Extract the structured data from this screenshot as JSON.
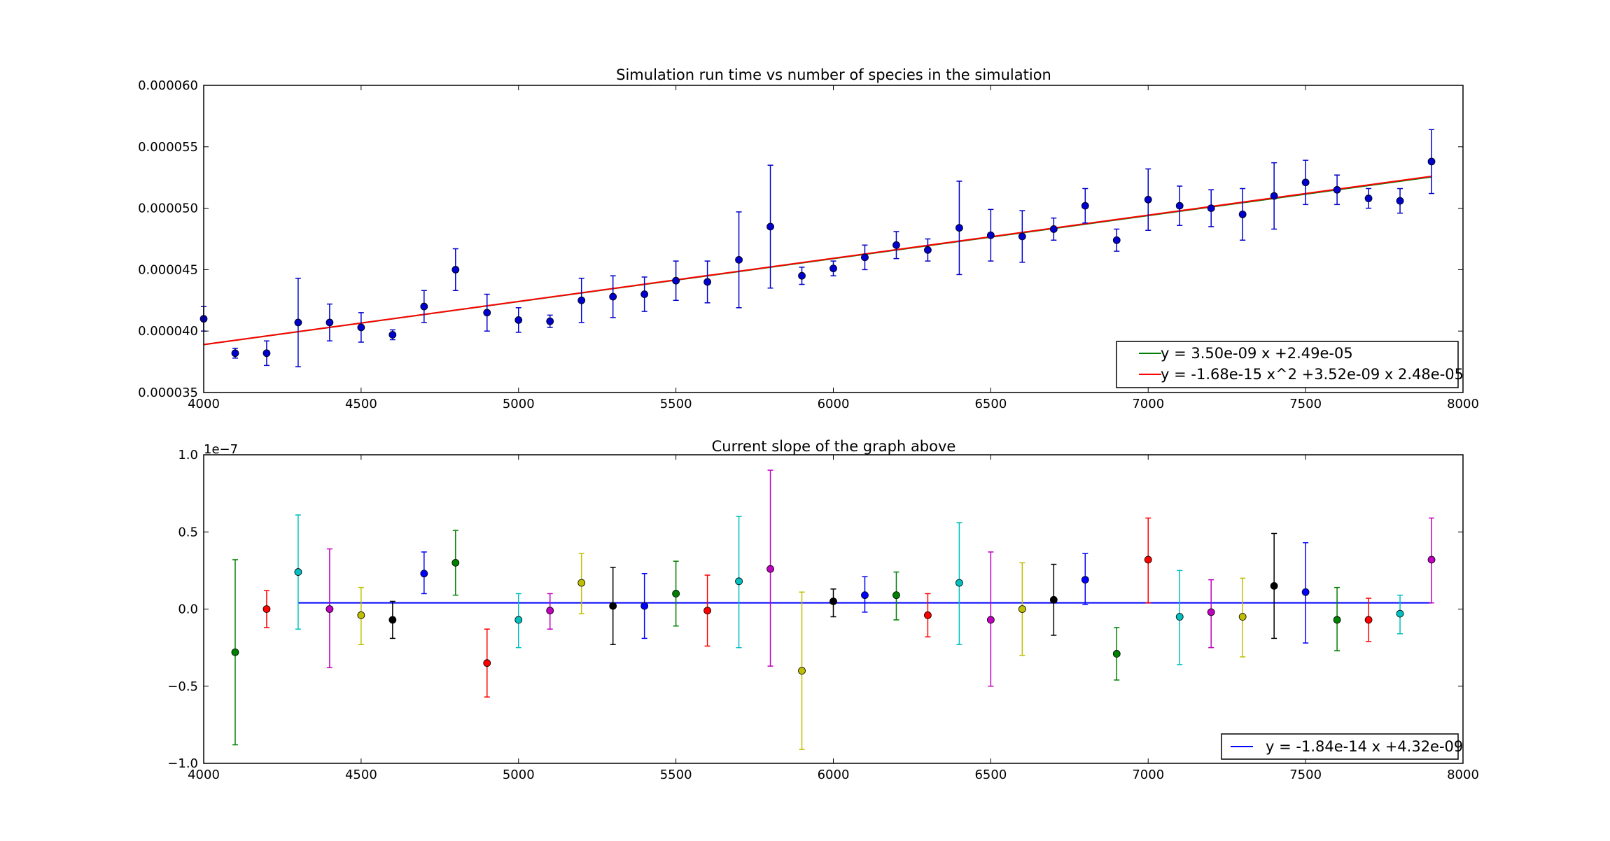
{
  "chart_data": [
    {
      "type": "scatter",
      "title": "Simulation run time vs number of species in the simulation",
      "xlabel": "",
      "ylabel": "",
      "xlim": [
        4000,
        8000
      ],
      "ylim": [
        3.5e-05,
        6e-05
      ],
      "x_ticks": [
        4000,
        4500,
        5000,
        5500,
        6000,
        6500,
        7000,
        7500,
        8000
      ],
      "x_tick_labels": [
        "4000",
        "4500",
        "5000",
        "5500",
        "6000",
        "6500",
        "7000",
        "7500",
        "8000"
      ],
      "y_ticks": [
        3.5e-05,
        4e-05,
        4.5e-05,
        5e-05,
        5.5e-05,
        6e-05
      ],
      "y_tick_labels": [
        "0.000035",
        "0.000040",
        "0.000045",
        "0.000050",
        "0.000055",
        "0.000060"
      ],
      "grid": false,
      "legend_position": "bottom-right",
      "points": {
        "color": "#0000cc",
        "x": [
          4000,
          4100,
          4200,
          4300,
          4400,
          4500,
          4600,
          4700,
          4800,
          4900,
          5000,
          5100,
          5200,
          5300,
          5400,
          5500,
          5600,
          5700,
          5800,
          5900,
          6000,
          6100,
          6200,
          6300,
          6400,
          6500,
          6600,
          6700,
          6800,
          6900,
          7000,
          7100,
          7200,
          7300,
          7400,
          7500,
          7600,
          7700,
          7800,
          7900
        ],
        "y": [
          4.1e-05,
          3.82e-05,
          3.82e-05,
          4.07e-05,
          4.07e-05,
          4.03e-05,
          3.97e-05,
          4.2e-05,
          4.5e-05,
          4.15e-05,
          4.09e-05,
          4.08e-05,
          4.25e-05,
          4.28e-05,
          4.3e-05,
          4.41e-05,
          4.4e-05,
          4.58e-05,
          4.85e-05,
          4.45e-05,
          4.51e-05,
          4.6e-05,
          4.7e-05,
          4.66e-05,
          4.84e-05,
          4.78e-05,
          4.77e-05,
          4.83e-05,
          5.02e-05,
          4.74e-05,
          5.07e-05,
          5.02e-05,
          5e-05,
          4.95e-05,
          5.1e-05,
          5.21e-05,
          5.15e-05,
          5.08e-05,
          5.06e-05,
          5.38e-05
        ],
        "err": [
          1e-06,
          4e-07,
          1e-06,
          3.6e-06,
          1.5e-06,
          1.2e-06,
          4e-07,
          1.3e-06,
          1.7e-06,
          1.5e-06,
          1e-06,
          5e-07,
          1.8e-06,
          1.7e-06,
          1.4e-06,
          1.6e-06,
          1.7e-06,
          3.9e-06,
          5e-06,
          7e-07,
          6e-07,
          1e-06,
          1.1e-06,
          9e-07,
          3.8e-06,
          2.1e-06,
          2.1e-06,
          9e-07,
          1.4e-06,
          9e-07,
          2.5e-06,
          1.6e-06,
          1.5e-06,
          2.1e-06,
          2.7e-06,
          1.8e-06,
          1.2e-06,
          8e-07,
          1e-06,
          2.6e-06
        ]
      },
      "series": [
        {
          "name": "y = 3.50e-09 x +2.49e-05",
          "color": "#008000",
          "x": [
            4000,
            7900
          ],
          "y": [
            3.89e-05,
            5.255e-05
          ]
        },
        {
          "name": "y = -1.68e-15 x^2 +3.52e-09 x 2.48e-05",
          "color": "#ff0000",
          "x": [
            4000,
            7900
          ],
          "y": [
            3.89e-05,
            5.26e-05
          ]
        }
      ]
    },
    {
      "type": "scatter",
      "title": "Current slope of the graph above",
      "xlabel": "",
      "ylabel": "",
      "offset_label": "1e−7",
      "xlim": [
        4000,
        8000
      ],
      "ylim": [
        -1.0,
        1.0
      ],
      "x_ticks": [
        4000,
        4500,
        5000,
        5500,
        6000,
        6500,
        7000,
        7500,
        8000
      ],
      "x_tick_labels": [
        "4000",
        "4500",
        "5000",
        "5500",
        "6000",
        "6500",
        "7000",
        "7500",
        "8000"
      ],
      "y_ticks": [
        -1.0,
        -0.5,
        0.0,
        0.5,
        1.0
      ],
      "y_tick_labels": [
        "−1.0",
        "−0.5",
        "0.0",
        "0.5",
        "1.0"
      ],
      "grid": false,
      "legend_position": "bottom-right",
      "point_colors": [
        "#008000",
        "#ff0000",
        "#00bfbf",
        "#bf00bf",
        "#bfbf00",
        "#000000",
        "#0000ff"
      ],
      "points": {
        "x": [
          4100,
          4200,
          4300,
          4400,
          4500,
          4600,
          4700,
          4800,
          4900,
          5000,
          5100,
          5200,
          5300,
          5400,
          5500,
          5600,
          5700,
          5800,
          5900,
          6000,
          6100,
          6200,
          6300,
          6400,
          6500,
          6600,
          6700,
          6800,
          6900,
          7000,
          7100,
          7200,
          7300,
          7400,
          7500,
          7600,
          7700,
          7800,
          7900
        ],
        "y": [
          -0.28,
          0.0,
          0.24,
          0.0,
          -0.04,
          -0.07,
          0.23,
          0.3,
          -0.35,
          -0.07,
          -0.01,
          0.17,
          0.02,
          0.02,
          0.1,
          -0.01,
          0.18,
          0.26,
          -0.4,
          0.05,
          0.09,
          0.09,
          -0.04,
          0.17,
          -0.07,
          0.0,
          0.06,
          0.19,
          -0.29,
          0.32,
          -0.05,
          -0.02,
          -0.05,
          0.15,
          0.11,
          -0.07,
          -0.07,
          -0.03,
          0.32
        ],
        "lo": [
          -0.88,
          -0.12,
          -0.13,
          -0.38,
          -0.23,
          -0.19,
          0.1,
          0.09,
          -0.57,
          -0.25,
          -0.13,
          -0.03,
          -0.23,
          -0.19,
          -0.11,
          -0.24,
          -0.25,
          -0.37,
          -0.91,
          -0.05,
          -0.02,
          -0.07,
          -0.18,
          -0.23,
          -0.5,
          -0.3,
          -0.17,
          0.03,
          -0.46,
          0.04,
          -0.36,
          -0.25,
          -0.31,
          -0.19,
          -0.22,
          -0.27,
          -0.21,
          -0.16,
          0.04
        ],
        "hi": [
          0.32,
          0.12,
          0.61,
          0.39,
          0.14,
          0.05,
          0.37,
          0.51,
          -0.13,
          0.1,
          0.1,
          0.36,
          0.27,
          0.23,
          0.31,
          0.22,
          0.6,
          0.9,
          0.11,
          0.13,
          0.21,
          0.24,
          0.1,
          0.56,
          0.37,
          0.3,
          0.29,
          0.36,
          -0.12,
          0.59,
          0.25,
          0.19,
          0.2,
          0.49,
          0.43,
          0.14,
          0.07,
          0.09,
          0.59
        ]
      },
      "series": [
        {
          "name": "y = -1.84e-14 x +4.32e-09",
          "color": "#0000ff",
          "x": [
            4300,
            7900
          ],
          "y": [
            0.04,
            0.04
          ]
        }
      ]
    }
  ]
}
